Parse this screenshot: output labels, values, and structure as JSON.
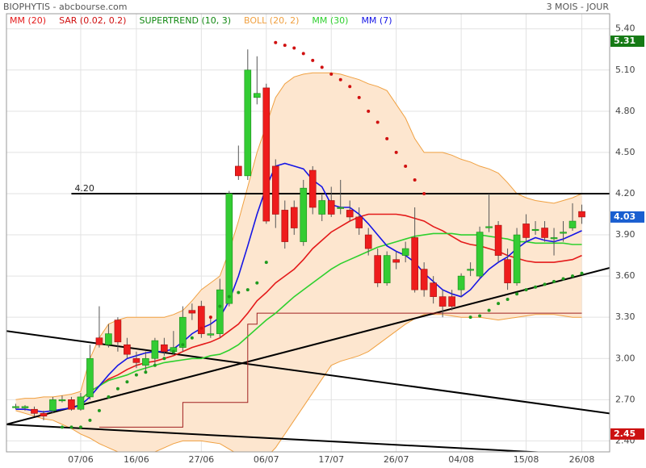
{
  "chart_data": {
    "type": "candlestick",
    "title": "BIOPHYTIS - abcbourse.com",
    "subtitle": "3 MOIS - JOUR",
    "categories": [
      null,
      null,
      null,
      null,
      null,
      null,
      null,
      "07/06",
      null,
      null,
      null,
      null,
      null,
      "16/06",
      null,
      null,
      null,
      null,
      null,
      null,
      "27/06",
      null,
      null,
      null,
      null,
      null,
      null,
      "06/07",
      null,
      null,
      null,
      null,
      null,
      null,
      "17/07",
      null,
      null,
      null,
      null,
      null,
      null,
      "26/07",
      null,
      null,
      null,
      null,
      null,
      null,
      "04/08",
      null,
      null,
      null,
      null,
      null,
      null,
      "15/08",
      null,
      null,
      null,
      null,
      null,
      "26/08"
    ],
    "ohlc": [
      [
        2.65,
        2.67,
        2.63,
        2.65
      ],
      [
        2.64,
        2.66,
        2.62,
        2.65
      ],
      [
        2.63,
        2.65,
        2.58,
        2.6
      ],
      [
        2.6,
        2.62,
        2.55,
        2.58
      ],
      [
        2.62,
        2.72,
        2.6,
        2.7
      ],
      [
        2.7,
        2.73,
        2.68,
        2.7
      ],
      [
        2.7,
        2.72,
        2.62,
        2.63
      ],
      [
        2.63,
        2.75,
        2.62,
        2.72
      ],
      [
        2.72,
        3.1,
        2.7,
        3.0
      ],
      [
        3.15,
        3.38,
        3.08,
        3.1
      ],
      [
        3.1,
        3.25,
        3.08,
        3.18
      ],
      [
        3.28,
        3.3,
        3.05,
        3.12
      ],
      [
        3.1,
        3.15,
        3.0,
        3.03
      ],
      [
        3.0,
        3.05,
        2.93,
        2.97
      ],
      [
        2.95,
        3.05,
        2.9,
        3.0
      ],
      [
        3.0,
        3.15,
        2.95,
        3.13
      ],
      [
        3.1,
        3.15,
        3.02,
        3.05
      ],
      [
        3.05,
        3.2,
        3.03,
        3.08
      ],
      [
        3.08,
        3.38,
        3.05,
        3.3
      ],
      [
        3.35,
        3.4,
        3.28,
        3.33
      ],
      [
        3.38,
        3.42,
        3.15,
        3.18
      ],
      [
        3.17,
        3.3,
        3.15,
        3.18
      ],
      [
        3.18,
        3.58,
        3.15,
        3.5
      ],
      [
        3.4,
        4.22,
        3.38,
        4.2
      ],
      [
        4.4,
        4.55,
        4.3,
        4.33
      ],
      [
        4.33,
        5.25,
        4.3,
        5.1
      ],
      [
        4.9,
        5.2,
        4.85,
        4.93
      ],
      [
        4.97,
        5.0,
        3.98,
        4.0
      ],
      [
        4.4,
        4.45,
        3.95,
        4.05
      ],
      [
        4.08,
        4.15,
        3.8,
        3.85
      ],
      [
        4.1,
        4.15,
        3.9,
        3.95
      ],
      [
        3.85,
        4.3,
        3.82,
        4.24
      ],
      [
        4.37,
        4.4,
        4.05,
        4.1
      ],
      [
        4.05,
        4.2,
        4.0,
        4.15
      ],
      [
        4.15,
        4.25,
        4.03,
        4.05
      ],
      [
        4.1,
        4.3,
        4.05,
        4.1
      ],
      [
        4.08,
        4.15,
        4.0,
        4.03
      ],
      [
        4.03,
        4.1,
        3.9,
        3.95
      ],
      [
        3.9,
        3.95,
        3.75,
        3.8
      ],
      [
        3.75,
        3.8,
        3.52,
        3.55
      ],
      [
        3.55,
        3.78,
        3.53,
        3.75
      ],
      [
        3.72,
        3.78,
        3.65,
        3.7
      ],
      [
        3.75,
        3.85,
        3.7,
        3.8
      ],
      [
        3.88,
        4.1,
        3.48,
        3.5
      ],
      [
        3.65,
        3.7,
        3.45,
        3.5
      ],
      [
        3.55,
        3.6,
        3.4,
        3.45
      ],
      [
        3.45,
        3.5,
        3.3,
        3.38
      ],
      [
        3.45,
        3.5,
        3.35,
        3.38
      ],
      [
        3.5,
        3.62,
        3.45,
        3.6
      ],
      [
        3.65,
        3.7,
        3.6,
        3.65
      ],
      [
        3.6,
        3.96,
        3.58,
        3.92
      ],
      [
        3.96,
        4.2,
        3.92,
        3.96
      ],
      [
        3.97,
        4.0,
        3.7,
        3.75
      ],
      [
        3.72,
        3.8,
        3.5,
        3.55
      ],
      [
        3.55,
        3.95,
        3.53,
        3.9
      ],
      [
        3.98,
        4.05,
        3.85,
        3.88
      ],
      [
        3.94,
        4.0,
        3.9,
        3.94
      ],
      [
        3.95,
        4.0,
        3.85,
        3.88
      ],
      [
        3.88,
        3.95,
        3.75,
        3.88
      ],
      [
        3.92,
        4.0,
        3.85,
        3.92
      ],
      [
        3.95,
        4.13,
        3.93,
        4.0
      ],
      [
        4.07,
        4.12,
        3.98,
        4.03
      ]
    ],
    "up_color": "#33cc33",
    "down_color": "#ee1c1c",
    "series": [
      {
        "name": "MM (20)",
        "color": "#e41a1a",
        "style": "line",
        "values": [
          null,
          null,
          null,
          null,
          null,
          null,
          null,
          2.7,
          2.76,
          2.8,
          2.85,
          2.88,
          2.92,
          2.95,
          2.97,
          2.98,
          3.0,
          3.02,
          3.05,
          3.08,
          3.1,
          3.12,
          3.15,
          3.2,
          3.25,
          3.33,
          3.42,
          3.48,
          3.55,
          3.6,
          3.65,
          3.72,
          3.8,
          3.86,
          3.92,
          3.96,
          4.0,
          4.03,
          4.05,
          4.05,
          4.05,
          4.05,
          4.04,
          4.02,
          4.0,
          3.96,
          3.93,
          3.89,
          3.85,
          3.83,
          3.82,
          3.8,
          3.78,
          3.75,
          3.73,
          3.71,
          3.7,
          3.7,
          3.7,
          3.71,
          3.72,
          3.75
        ]
      },
      {
        "name": "SAR (0.02, 0.2)",
        "color": "#d01010",
        "color_below": "#1f9a1f",
        "style": "dots",
        "values": [
          null,
          null,
          null,
          null,
          null,
          2.5,
          2.5,
          2.5,
          2.55,
          2.62,
          2.72,
          2.78,
          2.83,
          2.88,
          2.9,
          2.95,
          3.0,
          3.05,
          3.1,
          3.15,
          3.22,
          3.3,
          3.38,
          3.45,
          3.48,
          3.5,
          3.55,
          3.7,
          5.3,
          5.28,
          5.26,
          5.22,
          5.17,
          5.12,
          5.07,
          5.03,
          4.98,
          4.9,
          4.8,
          4.72,
          4.6,
          4.5,
          4.4,
          4.3,
          4.2,
          null,
          null,
          null,
          null,
          3.3,
          3.31,
          3.35,
          3.4,
          3.43,
          3.47,
          3.5,
          3.52,
          3.54,
          3.56,
          3.58,
          3.6,
          3.62
        ]
      },
      {
        "name": "SUPERTREND (10, 3)",
        "color": "#118811",
        "line_color": "#a02020",
        "style": "step",
        "values": [
          null,
          null,
          null,
          null,
          null,
          null,
          null,
          null,
          null,
          2.5,
          2.5,
          2.5,
          2.5,
          2.5,
          2.5,
          2.5,
          2.5,
          2.5,
          2.68,
          2.68,
          2.68,
          2.68,
          2.68,
          2.68,
          2.68,
          3.25,
          3.33,
          3.33,
          3.33,
          3.33,
          3.33,
          3.33,
          3.33,
          3.33,
          3.33,
          3.33,
          3.33,
          3.33,
          3.33,
          3.33,
          3.33,
          3.33,
          3.33,
          3.33,
          3.33,
          3.33,
          3.33,
          3.33,
          3.33,
          3.33,
          3.33,
          3.33,
          3.33,
          3.33,
          3.33,
          3.33,
          3.33,
          3.33,
          3.33,
          3.33,
          3.33,
          3.33
        ]
      },
      {
        "name": "BOLL (20, 2)",
        "color": "#f0a040",
        "fill": "#fde6cf",
        "style": "band",
        "upper": [
          2.7,
          2.71,
          2.71,
          2.72,
          2.72,
          2.73,
          2.74,
          2.76,
          3.0,
          3.15,
          3.25,
          3.28,
          3.3,
          3.3,
          3.3,
          3.3,
          3.3,
          3.32,
          3.35,
          3.42,
          3.5,
          3.55,
          3.6,
          3.78,
          4.0,
          4.25,
          4.5,
          4.7,
          4.9,
          5.0,
          5.05,
          5.07,
          5.08,
          5.08,
          5.08,
          5.07,
          5.05,
          5.03,
          5.0,
          4.98,
          4.95,
          4.85,
          4.75,
          4.6,
          4.5,
          4.5,
          4.5,
          4.48,
          4.45,
          4.43,
          4.4,
          4.38,
          4.35,
          4.28,
          4.2,
          4.17,
          4.15,
          4.14,
          4.13,
          4.15,
          4.17,
          4.2
        ],
        "lower": [
          2.62,
          2.6,
          2.58,
          2.56,
          2.55,
          2.52,
          2.49,
          2.45,
          2.42,
          2.38,
          2.35,
          2.32,
          2.3,
          2.3,
          2.3,
          2.32,
          2.35,
          2.38,
          2.4,
          2.4,
          2.4,
          2.39,
          2.38,
          2.34,
          2.3,
          2.26,
          2.25,
          2.28,
          2.35,
          2.45,
          2.55,
          2.65,
          2.75,
          2.85,
          2.95,
          2.98,
          3.0,
          3.02,
          3.05,
          3.1,
          3.15,
          3.2,
          3.25,
          3.29,
          3.32,
          3.32,
          3.32,
          3.31,
          3.3,
          3.3,
          3.3,
          3.29,
          3.28,
          3.29,
          3.3,
          3.31,
          3.32,
          3.32,
          3.32,
          3.31,
          3.3,
          3.3
        ]
      },
      {
        "name": "MM (30)",
        "color": "#2ed02e",
        "style": "line",
        "values": [
          null,
          null,
          null,
          null,
          null,
          null,
          null,
          2.7,
          2.76,
          2.8,
          2.84,
          2.86,
          2.88,
          2.91,
          2.93,
          2.95,
          2.97,
          2.98,
          2.99,
          3.0,
          3.0,
          3.02,
          3.03,
          3.06,
          3.1,
          3.16,
          3.22,
          3.28,
          3.33,
          3.39,
          3.45,
          3.5,
          3.55,
          3.6,
          3.65,
          3.69,
          3.72,
          3.75,
          3.78,
          3.81,
          3.83,
          3.85,
          3.87,
          3.89,
          3.9,
          3.91,
          3.91,
          3.91,
          3.9,
          3.9,
          3.9,
          3.89,
          3.88,
          3.87,
          3.85,
          3.85,
          3.84,
          3.84,
          3.84,
          3.84,
          3.83,
          3.83
        ]
      },
      {
        "name": "MM (7)",
        "color": "#1515e6",
        "style": "line",
        "values": [
          2.63,
          2.63,
          2.62,
          2.61,
          2.62,
          2.63,
          2.64,
          2.66,
          2.72,
          2.8,
          2.88,
          2.95,
          3.0,
          3.02,
          3.04,
          3.05,
          3.05,
          3.07,
          3.12,
          3.18,
          3.22,
          3.25,
          3.3,
          3.42,
          3.6,
          3.82,
          4.05,
          4.25,
          4.4,
          4.42,
          4.4,
          4.38,
          4.3,
          4.25,
          4.12,
          4.1,
          4.1,
          4.05,
          3.98,
          3.9,
          3.82,
          3.78,
          3.75,
          3.7,
          3.62,
          3.56,
          3.5,
          3.47,
          3.45,
          3.5,
          3.58,
          3.65,
          3.7,
          3.74,
          3.8,
          3.85,
          3.88,
          3.86,
          3.85,
          3.87,
          3.9,
          3.93
        ]
      }
    ],
    "trend_lines": [
      {
        "from": [
          -1,
          3.2
        ],
        "to": [
          64,
          2.6
        ]
      },
      {
        "from": [
          -1,
          2.52
        ],
        "to": [
          64,
          3.66
        ]
      },
      {
        "from": [
          -1,
          2.52
        ],
        "to": [
          64,
          2.29
        ]
      }
    ],
    "hline": {
      "value": 4.2,
      "label": "4.20",
      "from": 6
    },
    "price_markers": [
      {
        "value": 5.31,
        "color": "#157a15"
      },
      {
        "value": 4.03,
        "color": "#1a5fd0"
      },
      {
        "value": 2.45,
        "color": "#cc1111"
      }
    ],
    "xlim": [
      -1,
      64
    ],
    "ylim": [
      2.32,
      5.51
    ],
    "yticks": [
      {
        "value": 2.4,
        "label": "2.40"
      },
      {
        "value": 2.7,
        "label": "2.70"
      },
      {
        "value": 3.0,
        "label": "3.00"
      },
      {
        "value": 3.3,
        "label": "3.30"
      },
      {
        "value": 3.6,
        "label": "3.60"
      },
      {
        "value": 3.9,
        "label": "3.90"
      },
      {
        "value": 4.2,
        "label": "4.20"
      },
      {
        "value": 4.5,
        "label": "4.50"
      },
      {
        "value": 4.8,
        "label": "4.80"
      },
      {
        "value": 5.1,
        "label": "5.10"
      },
      {
        "value": 5.4,
        "label": "5.40"
      }
    ],
    "grid": true
  }
}
